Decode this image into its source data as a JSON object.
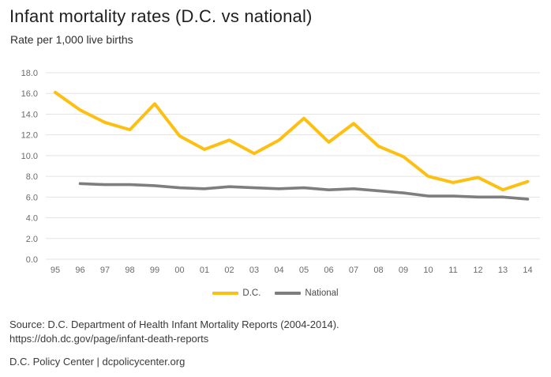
{
  "header": {
    "title": "Infant mortality rates (D.C. vs national)",
    "subtitle": "Rate per 1,000 live births"
  },
  "chart_data": {
    "type": "line",
    "title": "Infant mortality rates (D.C. vs national)",
    "ylabel": "Rate per 1,000 live births",
    "xlabel": "",
    "x_labels": [
      "95",
      "96",
      "97",
      "98",
      "99",
      "00",
      "01",
      "02",
      "03",
      "04",
      "05",
      "06",
      "07",
      "08",
      "09",
      "10",
      "11",
      "12",
      "13",
      "14"
    ],
    "series": [
      {
        "name": "D.C.",
        "color": "#FDBF11",
        "values": [
          16.1,
          14.4,
          13.2,
          12.5,
          15.0,
          11.9,
          10.6,
          11.5,
          10.2,
          11.5,
          13.6,
          11.3,
          13.1,
          10.9,
          9.9,
          8.0,
          7.4,
          7.9,
          6.7,
          7.5
        ]
      },
      {
        "name": "National",
        "color": "#7E7E7E",
        "values": [
          null,
          7.3,
          7.2,
          7.2,
          7.1,
          6.9,
          6.8,
          7.0,
          6.9,
          6.8,
          6.9,
          6.7,
          6.8,
          6.6,
          6.4,
          6.1,
          6.1,
          6.0,
          6.0,
          5.8
        ]
      }
    ],
    "ylim": [
      0,
      18
    ],
    "ytick_step": 2,
    "ytick_labels": [
      "0.0",
      "2.0",
      "4.0",
      "6.0",
      "8.0",
      "10.0",
      "12.0",
      "14.0",
      "16.0",
      "18.0"
    ],
    "grid": "horizontal",
    "legend_position": "bottom",
    "colors": {
      "grid": "#E3E3E3",
      "axis_text": "#6B6B6B",
      "background": "#FFFFFF"
    }
  },
  "footer": {
    "source_line": "Source: D.C. Department of Health Infant Mortality Reports (2004-2014).",
    "url_line": "https://doh.dc.gov/page/infant-death-reports",
    "brand_line": "D.C. Policy Center  |  dcpolicycenter.org"
  }
}
